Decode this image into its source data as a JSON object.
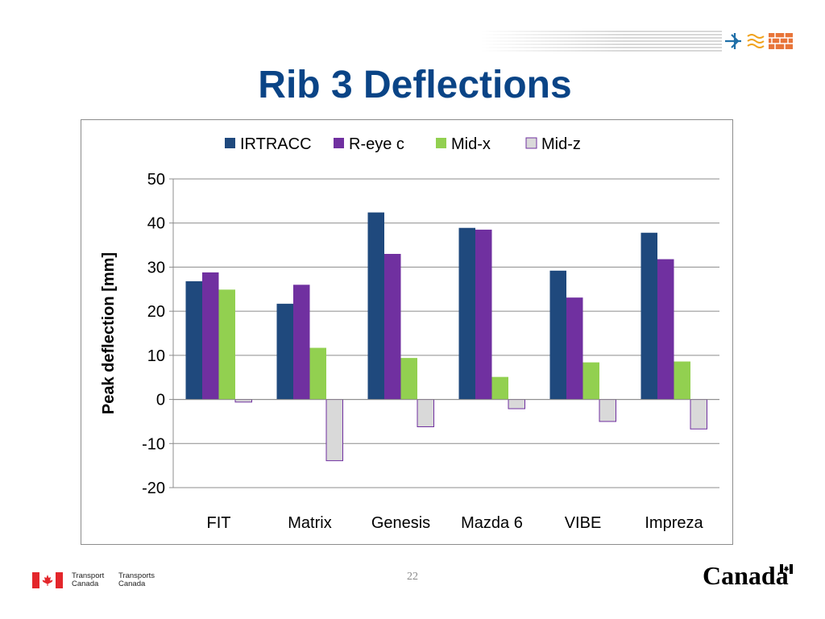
{
  "slide": {
    "title": "Rib 3 Deflections",
    "page_number": "22"
  },
  "footer": {
    "department_en_line1": "Transport",
    "department_en_line2": "Canada",
    "department_fr_line1": "Transports",
    "department_fr_line2": "Canada",
    "wordmark": "Canada"
  },
  "icons": {
    "header_logo": "transport-modes-logo-icon",
    "footer_flag": "canada-flag-icon",
    "wordmark_flag": "canada-flag-icon"
  },
  "chart_data": {
    "type": "bar",
    "title": "",
    "xlabel": "",
    "ylabel": "Peak deflection [mm]",
    "ylim": [
      -20,
      50
    ],
    "yticks": [
      50,
      40,
      30,
      20,
      10,
      0,
      -10,
      -20
    ],
    "grid": true,
    "legend_position": "top",
    "categories": [
      "FIT",
      "Matrix",
      "Genesis",
      "Mazda 6",
      "VIBE",
      "Impreza"
    ],
    "series": [
      {
        "name": "IRTRACC",
        "color": "#1f497d",
        "values": [
          26.8,
          21.7,
          42.4,
          38.9,
          29.2,
          37.8
        ]
      },
      {
        "name": "R-eye c",
        "color": "#7030a0",
        "values": [
          28.8,
          26.0,
          33.0,
          38.5,
          23.1,
          31.8
        ]
      },
      {
        "name": "Mid-x",
        "color": "#92d050",
        "values": [
          24.9,
          11.7,
          9.4,
          5.1,
          8.4,
          8.6
        ]
      },
      {
        "name": "Mid-z",
        "color": "#d9d9d9",
        "values": [
          -0.6,
          -13.9,
          -6.2,
          -2.1,
          -5.0,
          -6.7
        ]
      }
    ]
  }
}
